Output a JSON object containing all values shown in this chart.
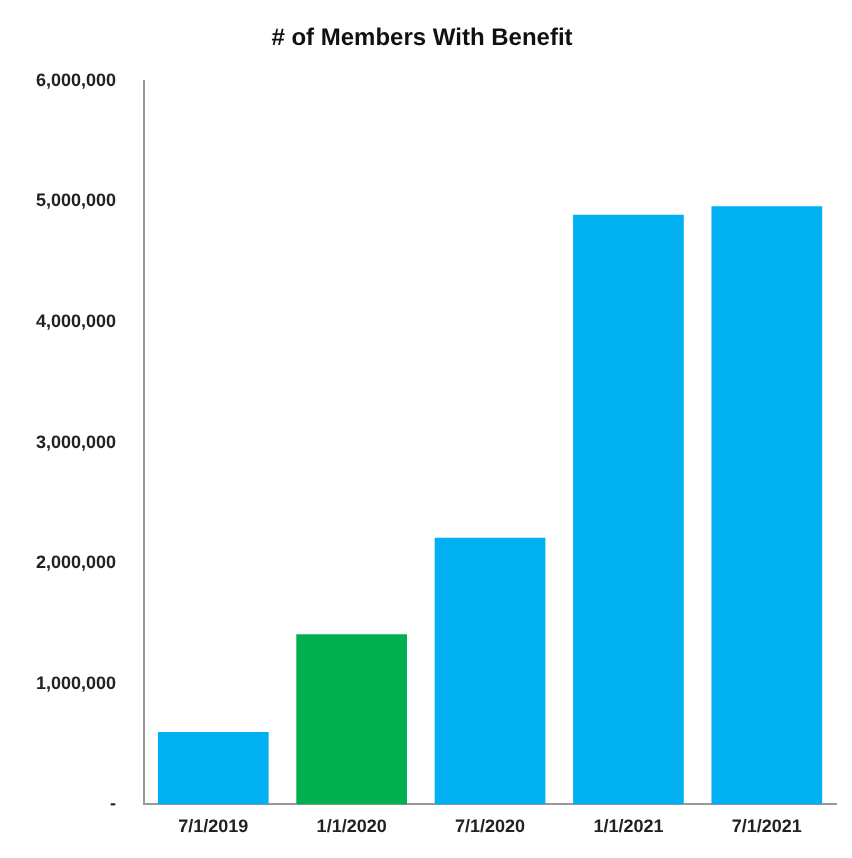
{
  "chart_data": {
    "type": "bar",
    "title": "# of Members With Benefit",
    "categories": [
      "7/1/2019",
      "1/1/2020",
      "7/1/2020",
      "1/1/2021",
      "7/1/2021"
    ],
    "values": [
      600000,
      1410000,
      2210000,
      4890000,
      4960000
    ],
    "colors": [
      "#00b0f0",
      "#00b050",
      "#00b0f0",
      "#00b0f0",
      "#00b0f0"
    ],
    "ylim": [
      0,
      6000000
    ],
    "yticks": [
      {
        "value": 0,
        "label": "-"
      },
      {
        "value": 1000000,
        "label": "1,000,000"
      },
      {
        "value": 2000000,
        "label": "2,000,000"
      },
      {
        "value": 3000000,
        "label": "3,000,000"
      },
      {
        "value": 4000000,
        "label": "4,000,000"
      },
      {
        "value": 5000000,
        "label": "5,000,000"
      },
      {
        "value": 6000000,
        "label": "6,000,000"
      }
    ],
    "grid": false,
    "legend": false
  }
}
